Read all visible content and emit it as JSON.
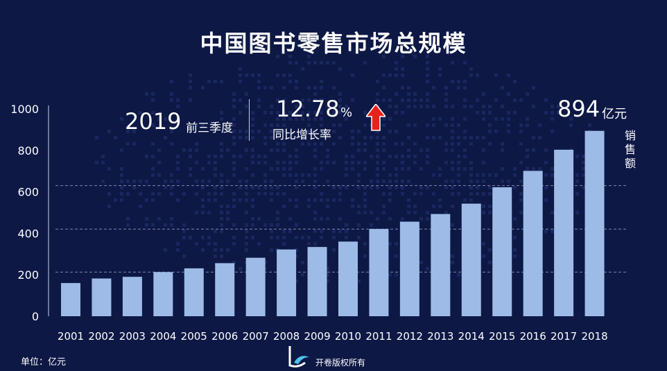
{
  "title": "中国图书零售市场总规模",
  "highlight": {
    "year": "2019",
    "year_label": "前三季度",
    "growth_rate": "12.78",
    "growth_unit": "%",
    "growth_label": "同比增长率",
    "growth_direction_icon": "up-arrow-icon",
    "latest_value": "894",
    "latest_unit": "亿元"
  },
  "footer": {
    "unit_note": "单位：亿元",
    "copyright": "开卷版权所有"
  },
  "colors": {
    "background": "#0d1845",
    "bar": "#9dbbe6",
    "arrow": "#e8221b",
    "gridline": "#9aa4c8"
  },
  "chart_data": {
    "type": "bar",
    "title": "中国图书零售市场总规模",
    "ylabel": "销售额",
    "xlabel": "",
    "categories": [
      "2001",
      "2002",
      "2003",
      "2004",
      "2005",
      "2006",
      "2007",
      "2008",
      "2009",
      "2010",
      "2011",
      "2012",
      "2013",
      "2014",
      "2015",
      "2016",
      "2017",
      "2018"
    ],
    "values": [
      160,
      182,
      190,
      213,
      231,
      256,
      282,
      322,
      334,
      360,
      421,
      456,
      493,
      543,
      622,
      701,
      803,
      894
    ],
    "ylim": [
      0,
      1000
    ],
    "yticks": [
      0,
      200,
      400,
      600,
      800,
      1000
    ],
    "grid": true
  }
}
